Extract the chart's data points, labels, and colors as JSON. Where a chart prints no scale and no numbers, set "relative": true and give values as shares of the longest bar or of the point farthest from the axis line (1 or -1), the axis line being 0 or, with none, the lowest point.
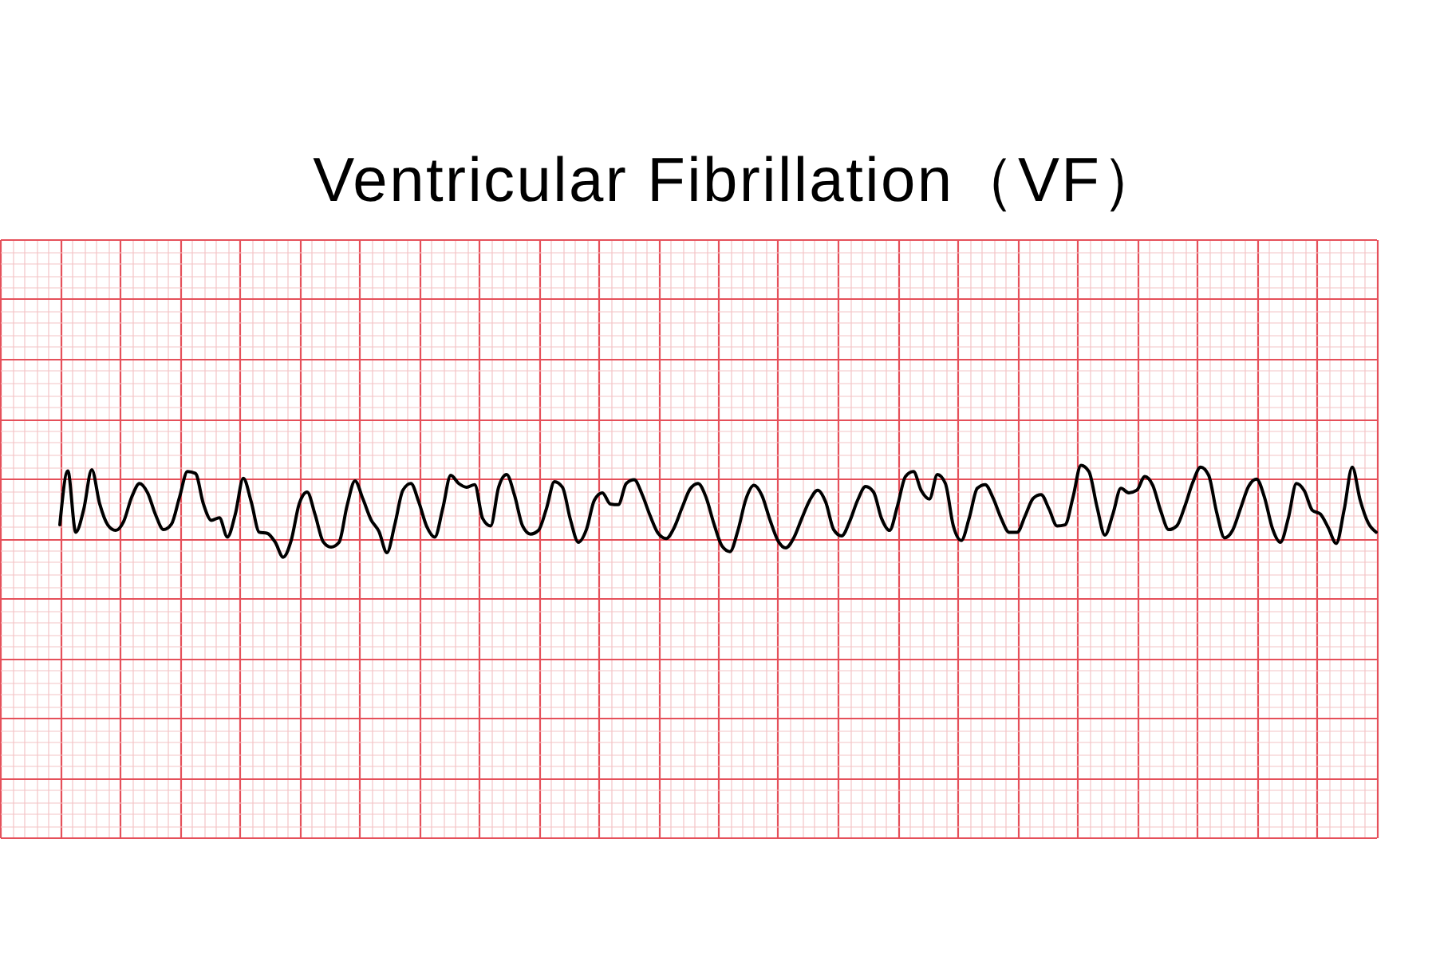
{
  "chart_data": {
    "type": "line",
    "title": "Ventricular Fibrillation（VF）",
    "relative": true,
    "grid": true,
    "color": "#000000",
    "categories": [
      null,
      null,
      null,
      null,
      null,
      null,
      null,
      null,
      null,
      null,
      null,
      null,
      null,
      null,
      null,
      null,
      null,
      null,
      null,
      null,
      null,
      null,
      null,
      null,
      null,
      null,
      null,
      null,
      null,
      null,
      null,
      null,
      null,
      null,
      null,
      null,
      null,
      null,
      null,
      null,
      null,
      null,
      null,
      null,
      null,
      null,
      null,
      null,
      null,
      null,
      null,
      null,
      null,
      null,
      null,
      null,
      null,
      null,
      null,
      null,
      null,
      null,
      null,
      null,
      null,
      null,
      null,
      null,
      null,
      null,
      null,
      null,
      null,
      null,
      null,
      null,
      null,
      null,
      null,
      null,
      null,
      null,
      null,
      null,
      null,
      null,
      null,
      null,
      null,
      null,
      null,
      null,
      null,
      null,
      null,
      null,
      null,
      null,
      null,
      null,
      null,
      null,
      null,
      null,
      null,
      null,
      null,
      null,
      null,
      null,
      null,
      null,
      null,
      null,
      null,
      null,
      null,
      null,
      null,
      null,
      null,
      null,
      null,
      null,
      null,
      null,
      null,
      null,
      null,
      null,
      null,
      null,
      null,
      null,
      null,
      null,
      null,
      null,
      null,
      null,
      null,
      null,
      null,
      null,
      null,
      null,
      null,
      null,
      null,
      null,
      null,
      null,
      null,
      null,
      null,
      null,
      null,
      null,
      null,
      null,
      null,
      null,
      null,
      null,
      null,
      null
    ],
    "values": [
      0.84,
      0.985,
      0.82,
      0.882,
      0.988,
      0.896,
      0.84,
      0.825,
      0.849,
      0.914,
      0.951,
      0.926,
      0.867,
      0.827,
      0.842,
      0.914,
      0.983,
      0.978,
      0.896,
      0.852,
      0.859,
      0.807,
      0.869,
      0.965,
      0.901,
      0.82,
      0.817,
      0.793,
      0.753,
      0.798,
      0.896,
      0.928,
      0.867,
      0.795,
      0.78,
      0.793,
      0.891,
      0.958,
      0.909,
      0.854,
      0.822,
      0.765,
      0.842,
      0.933,
      0.951,
      0.901,
      0.835,
      0.807,
      0.884,
      0.973,
      0.951,
      0.941,
      0.948,
      0.857,
      0.837,
      0.941,
      0.975,
      0.919,
      0.837,
      0.815,
      0.825,
      0.884,
      0.956,
      0.941,
      0.854,
      0.793,
      0.827,
      0.906,
      0.926,
      0.896,
      0.894,
      0.951,
      0.961,
      0.921,
      0.864,
      0.817,
      0.803,
      0.832,
      0.886,
      0.936,
      0.951,
      0.914,
      0.842,
      0.783,
      0.768,
      0.825,
      0.909,
      0.946,
      0.919,
      0.854,
      0.798,
      0.778,
      0.805,
      0.857,
      0.906,
      0.933,
      0.901,
      0.827,
      0.81,
      0.849,
      0.906,
      0.943,
      0.928,
      0.857,
      0.825,
      0.891,
      0.97,
      0.983,
      0.931,
      0.909,
      0.975,
      0.951,
      0.837,
      0.798,
      0.859,
      0.938,
      0.948,
      0.911,
      0.857,
      0.82,
      0.82,
      0.864,
      0.911,
      0.921,
      0.882,
      0.837,
      0.84,
      0.914,
      1,
      0.983,
      0.889,
      0.812,
      0.869,
      0.938,
      0.926,
      0.933,
      0.97,
      0.946,
      0.877,
      0.827,
      0.837,
      0.889,
      0.953,
      0.995,
      0.973,
      0.874,
      0.805,
      0.825,
      0.884,
      0.943,
      0.963,
      0.914,
      0.83,
      0.793,
      0.859,
      0.951,
      0.931,
      0.879,
      0.869,
      0.832,
      0.79,
      0.882,
      0.995,
      0.906,
      0.845,
      0.82
    ]
  }
}
